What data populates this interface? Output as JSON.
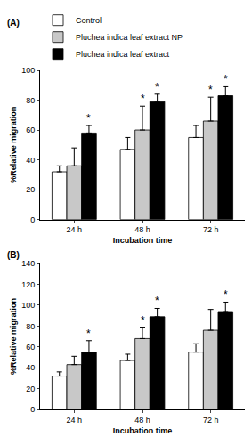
{
  "chart_data": [
    {
      "type": "bar",
      "title": "(A)",
      "x_label": "Incubation time",
      "y_label": "%Relative migration",
      "categories": [
        "24 h",
        "48 h",
        "72 h"
      ],
      "ylim": [
        0,
        100
      ],
      "yticks": [
        0,
        20,
        40,
        60,
        80,
        100
      ],
      "grid": false,
      "legend": "top left",
      "series": [
        {
          "name": "Control",
          "color": "#ffffff",
          "values": [
            32,
            47,
            55
          ],
          "errors": [
            4,
            8,
            8
          ]
        },
        {
          "name": "Pluchea indica leaf extract NP",
          "color": "#c8c8c8",
          "values": [
            36,
            60,
            66
          ],
          "errors": [
            12,
            16,
            16
          ]
        },
        {
          "name": "Pluchea indica leaf extract",
          "color": "#000000",
          "values": [
            58,
            79,
            83
          ],
          "errors": [
            5,
            5,
            6
          ]
        }
      ],
      "annotations": [
        {
          "text": "*",
          "category": "24 h",
          "series": "Pluchea indica leaf extract"
        },
        {
          "text": "*",
          "category": "48 h",
          "series": "Pluchea indica leaf extract NP"
        },
        {
          "text": "*",
          "category": "48 h",
          "series": "Pluchea indica leaf extract"
        },
        {
          "text": "*",
          "category": "72 h",
          "series": "Pluchea indica leaf extract NP"
        },
        {
          "text": "*",
          "category": "72 h",
          "series": "Pluchea indica leaf extract"
        }
      ]
    },
    {
      "type": "bar",
      "title": "(B)",
      "x_label": "Incubation time",
      "y_label": "%Relative migration",
      "categories": [
        "24 h",
        "48 h",
        "72 h"
      ],
      "ylim": [
        0,
        140
      ],
      "yticks": [
        0,
        20,
        40,
        60,
        80,
        100,
        120,
        140
      ],
      "grid": false,
      "series": [
        {
          "name": "Control",
          "color": "#ffffff",
          "values": [
            32,
            47,
            55
          ],
          "errors": [
            4,
            6,
            8
          ]
        },
        {
          "name": "Pluchea indica leaf extract NP",
          "color": "#c8c8c8",
          "values": [
            43,
            68,
            76
          ],
          "errors": [
            8,
            11,
            20
          ]
        },
        {
          "name": "Pluchea indica leaf extract",
          "color": "#000000",
          "values": [
            55,
            89,
            94
          ],
          "errors": [
            11,
            8,
            9
          ]
        }
      ],
      "annotations": [
        {
          "text": "*",
          "category": "24 h",
          "series": "Pluchea indica leaf extract"
        },
        {
          "text": "*",
          "category": "48 h",
          "series": "Pluchea indica leaf extract NP"
        },
        {
          "text": "*",
          "category": "48 h",
          "series": "Pluchea indica leaf extract"
        },
        {
          "text": "*",
          "category": "72 h",
          "series": "Pluchea indica leaf extract"
        }
      ]
    }
  ]
}
